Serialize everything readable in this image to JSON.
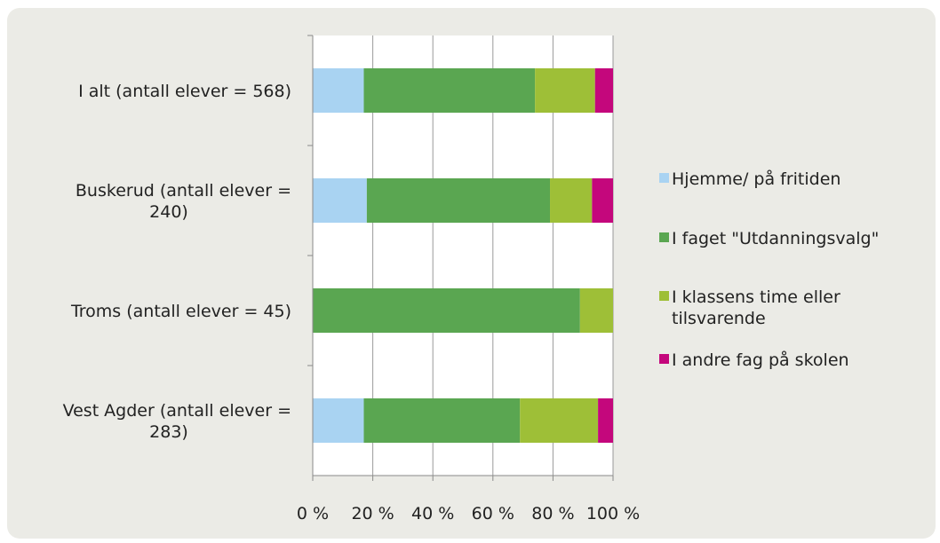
{
  "chart_data": {
    "type": "bar",
    "orientation": "horizontal",
    "stacked": "percent",
    "categories": [
      [
        "I alt (antall elever = 568)"
      ],
      [
        "Buskerud (antall elever =",
        "240)"
      ],
      [
        "Troms (antall elever = 45)"
      ],
      [
        "Vest Agder (antall elever =",
        "283)"
      ]
    ],
    "series": [
      {
        "name": "Hjemme/ på fritiden",
        "color": "#a9d3f2",
        "values": [
          17,
          18,
          0,
          17
        ]
      },
      {
        "name": "I faget \"Utdanningsvalg\"",
        "color": "#5aa651",
        "values": [
          57,
          61,
          89,
          52
        ]
      },
      {
        "name": "I klassens time eller tilsvarende",
        "legend_lines": [
          "I klassens time eller",
          "tilsvarende"
        ],
        "color": "#9ebf37",
        "values": [
          20,
          14,
          11,
          26
        ]
      },
      {
        "name": "I andre fag på skolen",
        "color": "#c4077c",
        "values": [
          6,
          7,
          0,
          5
        ]
      }
    ],
    "xlim": [
      0,
      100
    ],
    "x_ticks": [
      "0 %",
      "20 %",
      "40 %",
      "60 %",
      "80 %",
      "100 %"
    ],
    "grid": "vertical",
    "legend_position": "right"
  }
}
